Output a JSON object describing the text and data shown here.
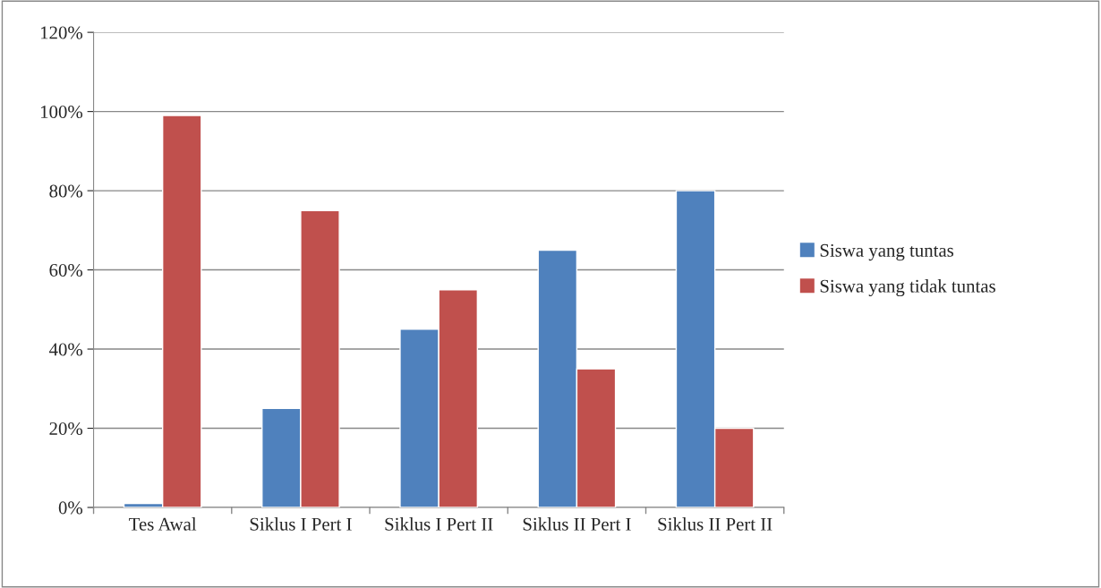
{
  "chart_data": {
    "type": "bar",
    "categories": [
      "Tes Awal",
      "Siklus I Pert I",
      "Siklus I Pert II",
      "Siklus II Pert I",
      "Siklus II Pert II"
    ],
    "series": [
      {
        "name": "Siswa yang tuntas",
        "color": "#4f81bd",
        "values": [
          1,
          25,
          45,
          65,
          80
        ]
      },
      {
        "name": "Siswa yang tidak tuntas",
        "color": "#c0504d",
        "values": [
          99,
          75,
          55,
          35,
          20
        ]
      }
    ],
    "ylim": [
      0,
      120
    ],
    "yticks": [
      {
        "value": 0,
        "label": "0%"
      },
      {
        "value": 20,
        "label": "20%"
      },
      {
        "value": 40,
        "label": "40%"
      },
      {
        "value": 60,
        "label": "60%"
      },
      {
        "value": 80,
        "label": "80%"
      },
      {
        "value": 100,
        "label": "100%"
      },
      {
        "value": 120,
        "label": "120%"
      }
    ],
    "grid": "y",
    "legend": "right"
  }
}
